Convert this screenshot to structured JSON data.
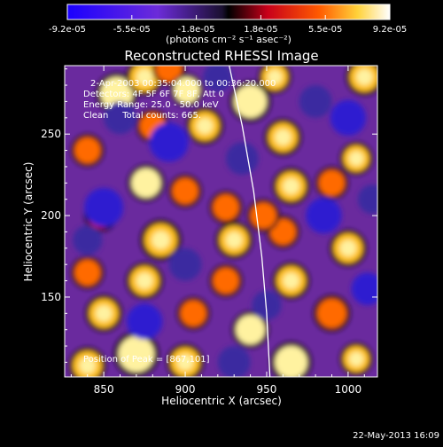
{
  "chart_data": {
    "type": "heatmap",
    "title": "Reconstructed RHESSI Image",
    "xlabel": "Heliocentric X (arcsec)",
    "ylabel": "Heliocentric Y (arcsec)",
    "xlim": [
      826,
      1018
    ],
    "ylim": [
      101,
      292
    ],
    "xticks": [
      850,
      900,
      950,
      1000
    ],
    "yticks": [
      150,
      200,
      250
    ],
    "colorbar": {
      "range": [
        -9.2e-05,
        9.2e-05
      ],
      "tick_labels": [
        "-9.2e-05",
        "-5.5e-05",
        "-1.8e-05",
        "1.8e-05",
        "5.5e-05",
        "9.2e-05"
      ],
      "unit_label": "(photons cm⁻² s⁻¹ asec⁻²)"
    },
    "annotations": [
      "2-Apr-2003 00:35:04.000 to 00:36:20.000",
      "Detectors: 4F 5F 6F 7F 8F, Att 0",
      "Energy Range: 25.0 - 50.0 keV",
      "Clean     Total counts: 665.",
      "Position of Peak = [867,101]"
    ],
    "limb_curve": {
      "description_color": "#ffffff",
      "points": [
        [
          927,
          292
        ],
        [
          935,
          255
        ],
        [
          942,
          215
        ],
        [
          947,
          175
        ],
        [
          950,
          140
        ],
        [
          952,
          101
        ]
      ]
    },
    "blobs": [
      [
        858,
        275,
        1,
        10
      ],
      [
        875,
        285,
        0.8,
        9
      ],
      [
        890,
        290,
        0.6,
        8
      ],
      [
        901,
        277,
        0.9,
        8
      ],
      [
        940,
        270,
        0.9,
        10
      ],
      [
        955,
        285,
        0.7,
        8
      ],
      [
        1010,
        285,
        0.8,
        9
      ],
      [
        880,
        255,
        0.6,
        8
      ],
      [
        912,
        255,
        0.7,
        9
      ],
      [
        960,
        248,
        0.7,
        9
      ],
      [
        1005,
        235,
        0.7,
        8
      ],
      [
        840,
        240,
        0.5,
        8
      ],
      [
        876,
        220,
        0.9,
        9
      ],
      [
        900,
        215,
        0.6,
        8
      ],
      [
        925,
        205,
        0.6,
        8
      ],
      [
        965,
        218,
        0.7,
        9
      ],
      [
        990,
        220,
        0.6,
        8
      ],
      [
        848,
        200,
        0.4,
        8
      ],
      [
        885,
        185,
        0.8,
        10
      ],
      [
        930,
        185,
        0.8,
        9
      ],
      [
        960,
        190,
        0.6,
        8
      ],
      [
        1000,
        180,
        0.8,
        9
      ],
      [
        840,
        165,
        0.5,
        8
      ],
      [
        875,
        160,
        0.7,
        9
      ],
      [
        925,
        160,
        0.6,
        8
      ],
      [
        965,
        160,
        0.8,
        9
      ],
      [
        990,
        140,
        0.6,
        9
      ],
      [
        850,
        140,
        0.8,
        9
      ],
      [
        905,
        140,
        0.6,
        8
      ],
      [
        940,
        130,
        0.9,
        9
      ],
      [
        870,
        115,
        1,
        11
      ],
      [
        840,
        108,
        0.8,
        9
      ],
      [
        900,
        110,
        0.8,
        9
      ],
      [
        965,
        110,
        0.9,
        10
      ],
      [
        1005,
        112,
        0.7,
        8
      ],
      [
        948,
        200,
        0.5,
        8
      ],
      [
        890,
        245,
        -0.8,
        12
      ],
      [
        850,
        205,
        -0.8,
        12
      ],
      [
        985,
        200,
        -0.9,
        11
      ],
      [
        1000,
        260,
        -0.7,
        11
      ],
      [
        935,
        235,
        -0.6,
        10
      ],
      [
        875,
        135,
        -0.7,
        11
      ],
      [
        930,
        110,
        -0.6,
        10
      ],
      [
        1012,
        155,
        -0.8,
        10
      ],
      [
        900,
        170,
        -0.6,
        10
      ],
      [
        860,
        260,
        -0.5,
        10
      ],
      [
        980,
        270,
        -0.6,
        10
      ],
      [
        920,
        285,
        -0.6,
        9
      ],
      [
        1015,
        210,
        -0.5,
        9
      ],
      [
        840,
        185,
        -0.6,
        9
      ],
      [
        950,
        145,
        -0.5,
        9
      ]
    ]
  },
  "footer": {
    "date": "22-May-2013 16:09"
  }
}
